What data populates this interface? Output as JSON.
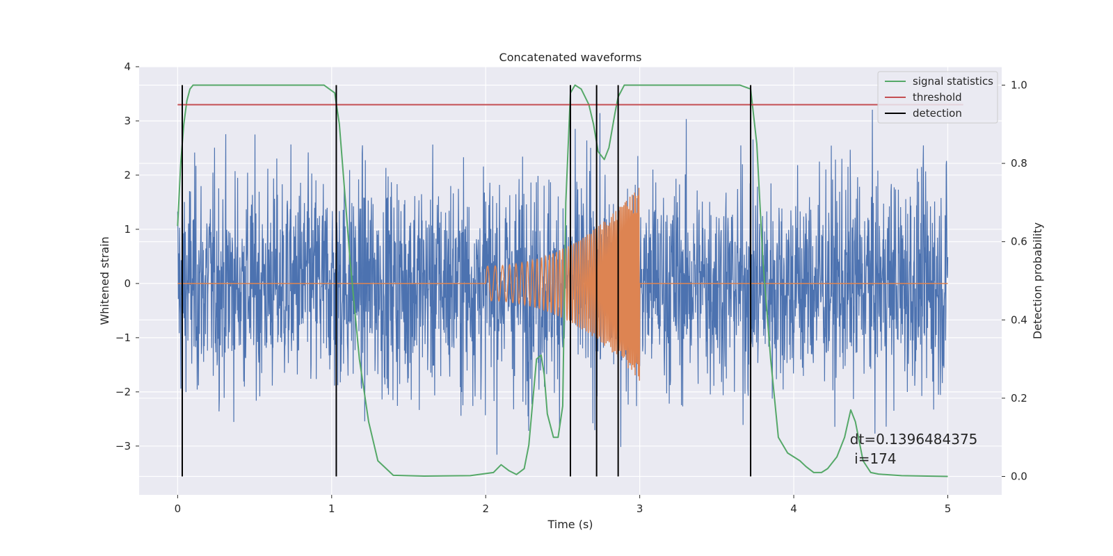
{
  "chart_data": {
    "type": "line",
    "title": "Concatenated waveforms",
    "xlabel": "Time (s)",
    "ylabel": "Whitened strain",
    "y2label": "Detection probability",
    "xlim": [
      -0.25,
      5.35
    ],
    "ylim": [
      -3.9,
      4.0
    ],
    "y2lim": [
      -0.047,
      1.047
    ],
    "x_ticks": [
      0,
      1,
      2,
      3,
      4,
      5
    ],
    "y_ticks": [
      -3,
      -2,
      -1,
      0,
      1,
      2,
      3,
      4
    ],
    "y2_ticks": [
      0.0,
      0.2,
      0.4,
      0.6,
      0.8,
      1.0
    ],
    "grid": true,
    "legend_position": "top-right",
    "annotation": {
      "text_line1": "dt=0.1396484375",
      "text_line2": " i=174",
      "x": 4.5,
      "y_prob": 0.095
    },
    "series": [
      {
        "name": "strain",
        "color": "#4c72b0",
        "kind": "noise",
        "x_range": [
          0,
          5
        ],
        "samples": 2400,
        "clip": [
          -3.6,
          3.6
        ],
        "approx_std": 1.0
      },
      {
        "name": "waveform",
        "color": "#dd8452",
        "kind": "chirp",
        "x_range": [
          0,
          5
        ],
        "chirp_start": 2.0,
        "chirp_end": 3.0,
        "amp_start": 0.32,
        "amp_end": 1.8
      },
      {
        "name": "signal statistics",
        "color": "#55a868",
        "axis": "right",
        "x": [
          0.0,
          0.02,
          0.04,
          0.06,
          0.08,
          0.1,
          0.2,
          0.5,
          0.8,
          0.95,
          1.02,
          1.05,
          1.08,
          1.12,
          1.18,
          1.24,
          1.3,
          1.4,
          1.6,
          1.9,
          2.05,
          2.1,
          2.15,
          2.2,
          2.25,
          2.28,
          2.33,
          2.36,
          2.38,
          2.4,
          2.44,
          2.47,
          2.5,
          2.52,
          2.55,
          2.58,
          2.62,
          2.67,
          2.7,
          2.73,
          2.77,
          2.8,
          2.84,
          2.86,
          2.9,
          2.93,
          3.0,
          3.5,
          3.65,
          3.72,
          3.76,
          3.8,
          3.85,
          3.9,
          3.96,
          4.0,
          4.04,
          4.08,
          4.13,
          4.18,
          4.22,
          4.28,
          4.33,
          4.37,
          4.4,
          4.45,
          4.5,
          4.55,
          4.7,
          5.0
        ],
        "y": [
          0.64,
          0.8,
          0.9,
          0.96,
          0.99,
          1.0,
          1.0,
          1.0,
          1.0,
          1.0,
          0.98,
          0.9,
          0.75,
          0.55,
          0.3,
          0.14,
          0.04,
          0.003,
          0.001,
          0.002,
          0.01,
          0.03,
          0.015,
          0.005,
          0.02,
          0.08,
          0.3,
          0.31,
          0.26,
          0.16,
          0.1,
          0.1,
          0.18,
          0.7,
          0.98,
          1.0,
          0.99,
          0.95,
          0.9,
          0.83,
          0.81,
          0.84,
          0.93,
          0.97,
          1.0,
          1.0,
          1.0,
          1.0,
          1.0,
          0.99,
          0.85,
          0.55,
          0.3,
          0.1,
          0.06,
          0.05,
          0.04,
          0.025,
          0.01,
          0.01,
          0.02,
          0.05,
          0.1,
          0.17,
          0.14,
          0.04,
          0.01,
          0.006,
          0.002,
          0.0
        ]
      },
      {
        "name": "threshold",
        "color": "#c44e52",
        "axis": "right",
        "x": [
          0.0,
          5.1
        ],
        "y": [
          0.95,
          0.95
        ]
      },
      {
        "name": "detection",
        "color": "#000000",
        "axis": "right",
        "kind": "vlines",
        "x": [
          0.03,
          1.03,
          2.55,
          2.72,
          2.86,
          3.72
        ],
        "y_range": [
          0.0,
          1.0
        ]
      }
    ],
    "legend": [
      {
        "label": "signal statistics",
        "color": "#55a868"
      },
      {
        "label": "threshold",
        "color": "#c44e52"
      },
      {
        "label": "detection",
        "color": "#000000"
      }
    ]
  }
}
